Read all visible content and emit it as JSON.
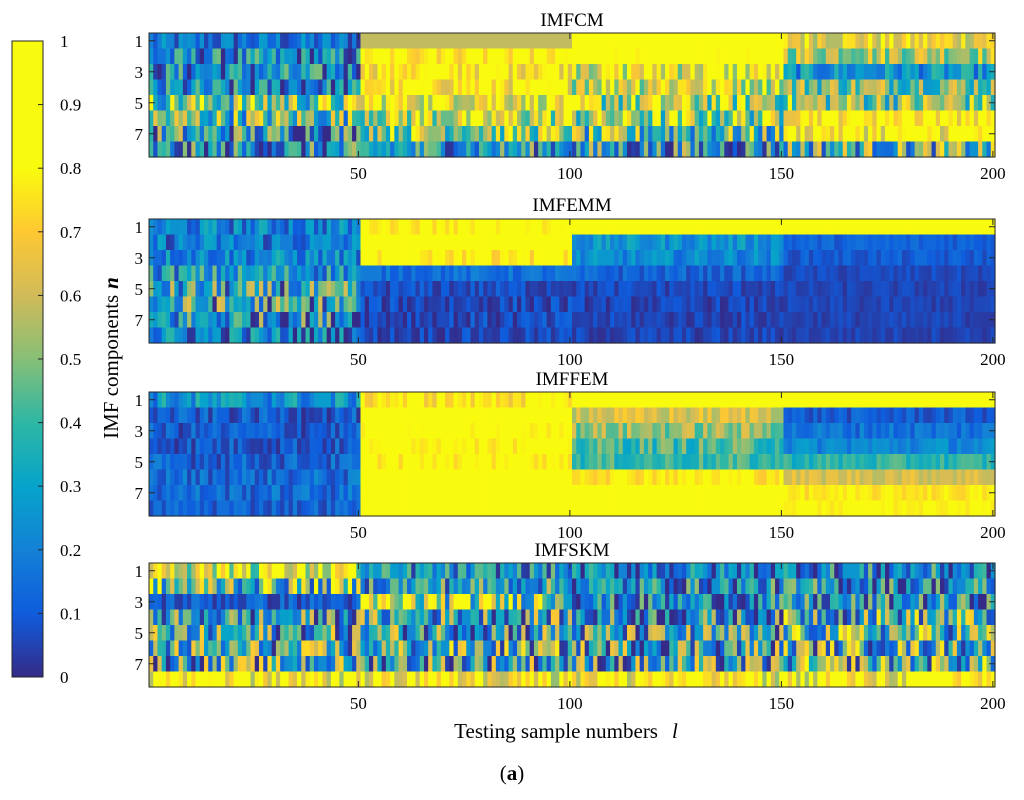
{
  "chart_data": {
    "type": "heatmap",
    "figure_label": "(a)",
    "figure_label_parts": [
      "(",
      "a",
      ")"
    ],
    "xlabel": "Testing sample numbers",
    "xlabel_var": "l",
    "ylabel": "IMF components",
    "ylabel_var": "n",
    "x_range": [
      1,
      200
    ],
    "x_ticks": [
      50,
      100,
      150,
      200
    ],
    "y_range": [
      1,
      8
    ],
    "y_ticks": [
      1,
      3,
      5,
      7
    ],
    "colorbar": {
      "colormap": "parula",
      "range": [
        0,
        1
      ],
      "ticks": [
        "0",
        "0.1",
        "0.2",
        "0.3",
        "0.4",
        "0.5",
        "0.6",
        "0.7",
        "0.8",
        "0.9",
        "1"
      ]
    },
    "segments": [
      [
        1,
        50
      ],
      [
        51,
        100
      ],
      [
        101,
        150
      ],
      [
        151,
        200
      ]
    ],
    "panels": [
      {
        "title": "IMFCM",
        "mean": [
          [
            0.15,
            0.58,
            0.92,
            0.68
          ],
          [
            0.2,
            0.82,
            0.9,
            0.58
          ],
          [
            0.22,
            0.8,
            0.72,
            0.25
          ],
          [
            0.2,
            0.78,
            0.7,
            0.5
          ],
          [
            0.5,
            0.72,
            0.58,
            0.52
          ],
          [
            0.45,
            0.62,
            0.55,
            0.82
          ],
          [
            0.3,
            0.55,
            0.42,
            0.8
          ],
          [
            0.22,
            0.3,
            0.28,
            0.4
          ]
        ],
        "noise": [
          [
            0.1,
            0.0,
            0.06,
            0.1
          ],
          [
            0.18,
            0.1,
            0.08,
            0.12
          ],
          [
            0.18,
            0.12,
            0.18,
            0.1
          ],
          [
            0.18,
            0.12,
            0.18,
            0.15
          ],
          [
            0.22,
            0.15,
            0.2,
            0.18
          ],
          [
            0.22,
            0.18,
            0.2,
            0.12
          ],
          [
            0.22,
            0.18,
            0.22,
            0.15
          ],
          [
            0.22,
            0.18,
            0.22,
            0.22
          ]
        ]
      },
      {
        "title": "IMFEMM",
        "mean": [
          [
            0.2,
            0.82,
            0.98,
            0.98
          ],
          [
            0.18,
            0.9,
            0.25,
            0.12
          ],
          [
            0.22,
            0.82,
            0.22,
            0.1
          ],
          [
            0.28,
            0.15,
            0.12,
            0.06
          ],
          [
            0.3,
            0.07,
            0.06,
            0.05
          ],
          [
            0.32,
            0.06,
            0.05,
            0.05
          ],
          [
            0.28,
            0.06,
            0.05,
            0.05
          ],
          [
            0.2,
            0.06,
            0.05,
            0.05
          ]
        ],
        "noise": [
          [
            0.1,
            0.06,
            0.02,
            0.02
          ],
          [
            0.1,
            0.06,
            0.06,
            0.03
          ],
          [
            0.1,
            0.08,
            0.06,
            0.03
          ],
          [
            0.14,
            0.04,
            0.04,
            0.02
          ],
          [
            0.2,
            0.04,
            0.03,
            0.02
          ],
          [
            0.22,
            0.05,
            0.03,
            0.02
          ],
          [
            0.2,
            0.05,
            0.03,
            0.02
          ],
          [
            0.14,
            0.04,
            0.03,
            0.02
          ]
        ]
      },
      {
        "title": "IMFFEM",
        "mean": [
          [
            0.25,
            0.78,
            0.97,
            0.97
          ],
          [
            0.1,
            0.92,
            0.62,
            0.1
          ],
          [
            0.1,
            0.88,
            0.52,
            0.16
          ],
          [
            0.1,
            0.86,
            0.42,
            0.22
          ],
          [
            0.12,
            0.85,
            0.4,
            0.38
          ],
          [
            0.14,
            0.92,
            0.78,
            0.62
          ],
          [
            0.14,
            0.96,
            0.88,
            0.76
          ],
          [
            0.12,
            0.97,
            0.88,
            0.8
          ]
        ],
        "noise": [
          [
            0.1,
            0.08,
            0.02,
            0.02
          ],
          [
            0.06,
            0.06,
            0.06,
            0.04
          ],
          [
            0.06,
            0.08,
            0.08,
            0.05
          ],
          [
            0.06,
            0.08,
            0.08,
            0.05
          ],
          [
            0.06,
            0.08,
            0.06,
            0.05
          ],
          [
            0.06,
            0.05,
            0.05,
            0.04
          ],
          [
            0.06,
            0.03,
            0.03,
            0.03
          ],
          [
            0.05,
            0.02,
            0.03,
            0.03
          ]
        ]
      },
      {
        "title": "IMFSKM",
        "mean": [
          [
            0.72,
            0.25,
            0.2,
            0.22
          ],
          [
            0.45,
            0.32,
            0.25,
            0.25
          ],
          [
            0.1,
            0.55,
            0.22,
            0.25
          ],
          [
            0.3,
            0.35,
            0.25,
            0.4
          ],
          [
            0.32,
            0.35,
            0.3,
            0.42
          ],
          [
            0.35,
            0.38,
            0.35,
            0.4
          ],
          [
            0.35,
            0.35,
            0.32,
            0.4
          ],
          [
            0.8,
            0.8,
            0.78,
            0.8
          ]
        ],
        "noise": [
          [
            0.22,
            0.15,
            0.15,
            0.18
          ],
          [
            0.25,
            0.18,
            0.18,
            0.2
          ],
          [
            0.06,
            0.25,
            0.18,
            0.2
          ],
          [
            0.22,
            0.22,
            0.22,
            0.25
          ],
          [
            0.25,
            0.25,
            0.25,
            0.25
          ],
          [
            0.25,
            0.25,
            0.25,
            0.25
          ],
          [
            0.25,
            0.25,
            0.25,
            0.25
          ],
          [
            0.18,
            0.18,
            0.18,
            0.18
          ]
        ]
      }
    ]
  }
}
